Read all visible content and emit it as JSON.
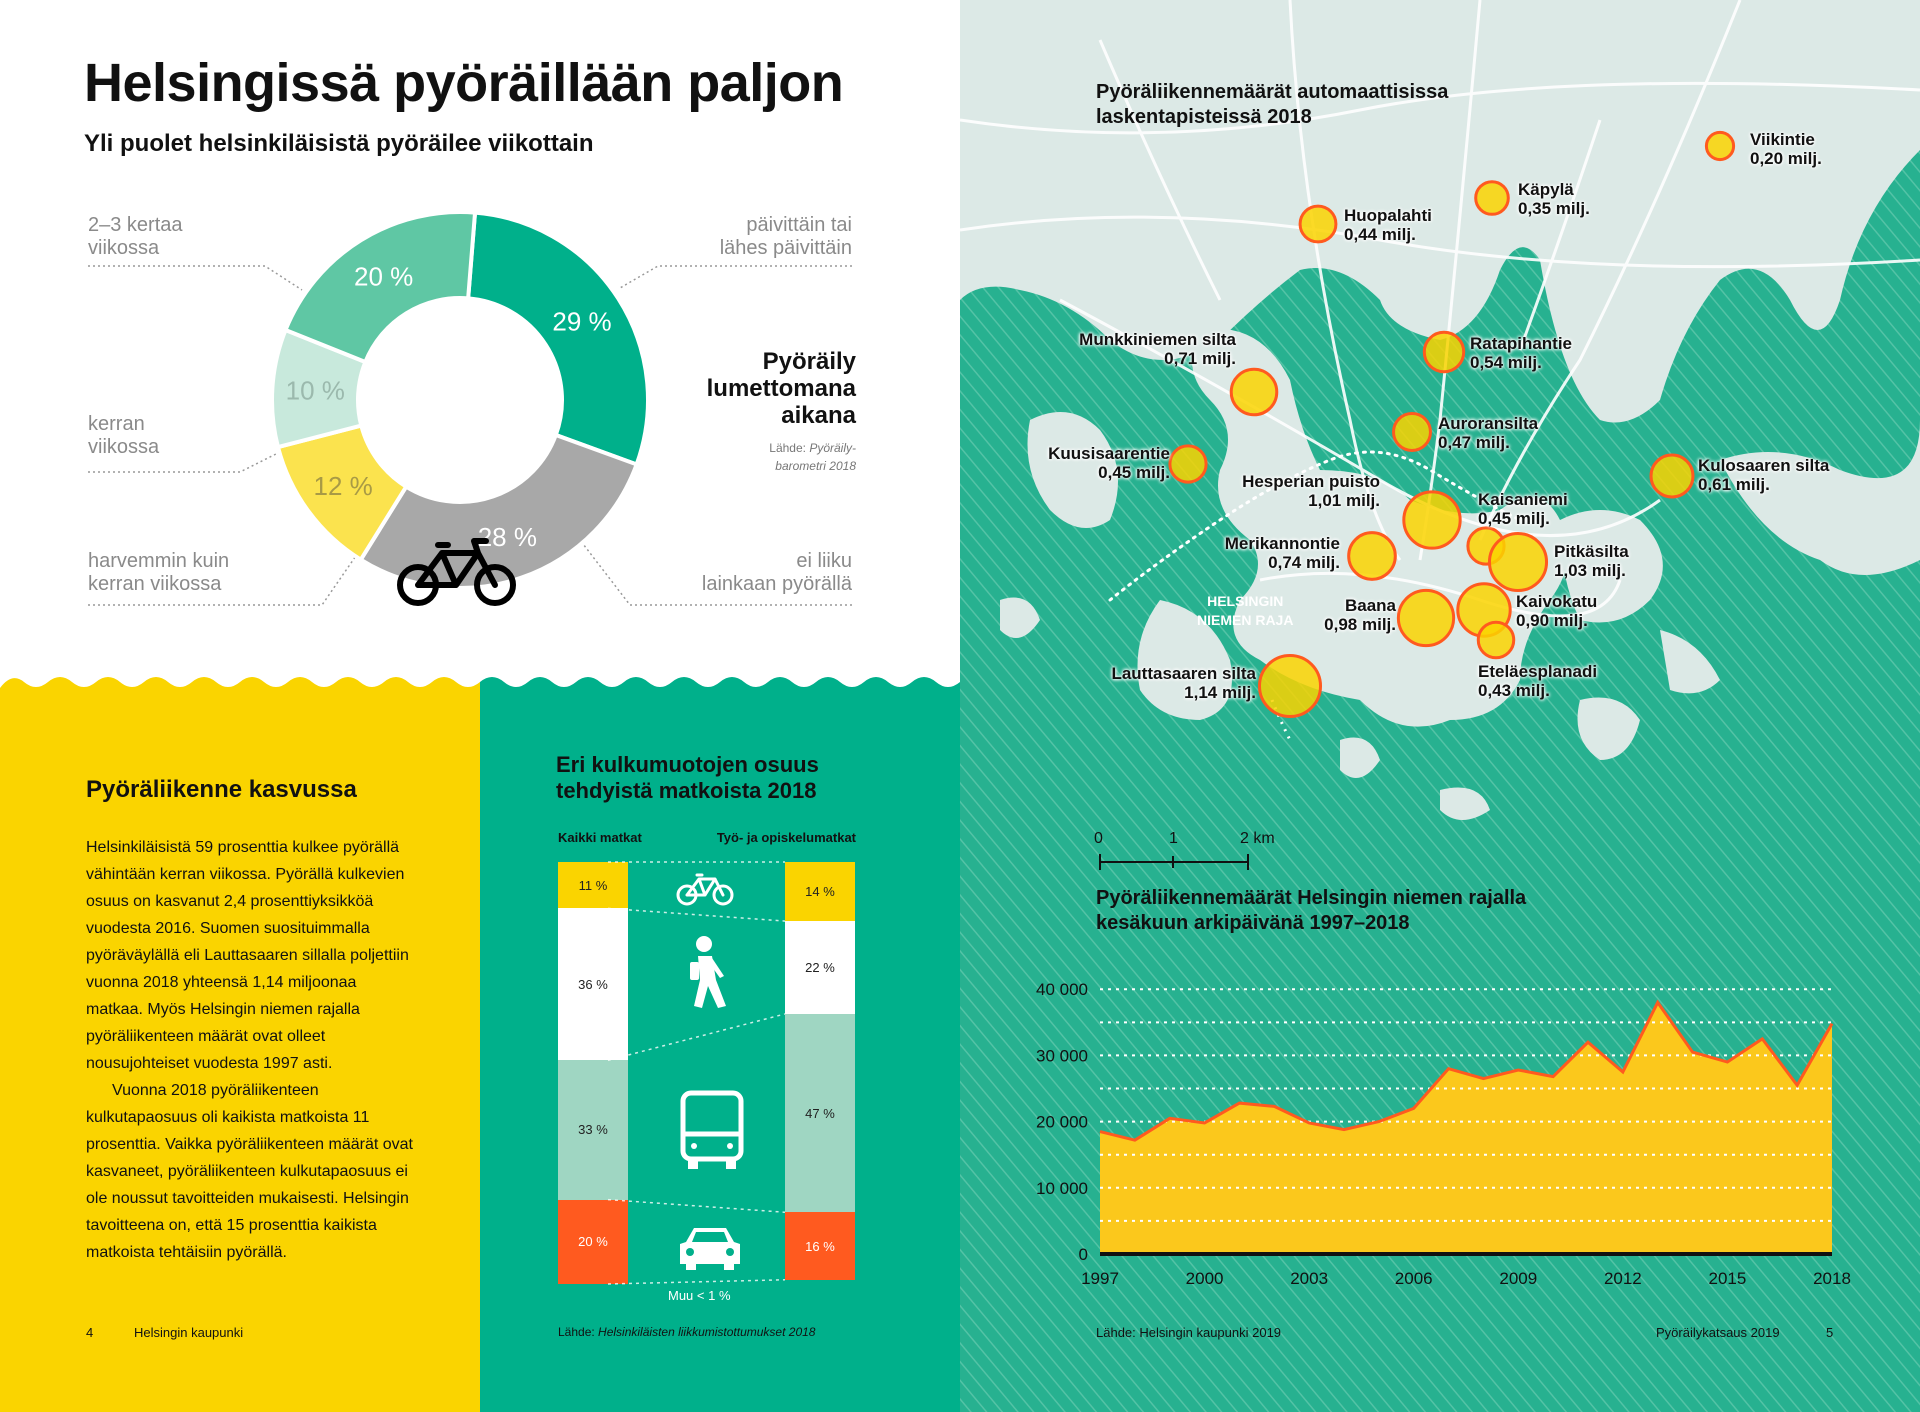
{
  "left": {
    "title": "Helsingissä pyöräillään paljon",
    "subtitle": "Yli puolet helsinkiläisistä pyöräilee viikottain",
    "donut_note": {
      "title_lines": [
        "Pyöräily",
        "lumettomana",
        "aikana"
      ],
      "source_prefix": "Lähde:",
      "source_italic_1": "Pyöräily-",
      "source_italic_2": "barometri 2018"
    },
    "growth": {
      "heading": "Pyöräliikenne kasvussa",
      "paragraph1": "Helsinkiläisistä 59 prosenttia kulkee pyörällä vähintään kerran viikossa. Pyörällä kulkevien osuus on kasvanut 2,4 prosenttiyksikköä vuodesta 2016. Suomen suosituimmalla pyöräväylällä eli Lauttasaaren sillalla poljettiin vuonna 2018 yhteensä 1,14 miljoonaa matkaa. Myös Helsingin niemen rajalla pyöräliikenteen määrät ovat olleet nousujohteiset vuodesta 1997 asti.",
      "paragraph2": "Vuonna 2018 pyöräliikenteen kulkutapaosuus oli kaikista matkoista 11 prosenttia. Vaikka pyöräliikenteen määrät ovat kasvaneet, pyöräliikenteen kulkutapaosuus ei ole noussut tavoitteiden mukaisesti. Helsingin tavoitteena on, että 15 prosenttia kaikista matkoista tehtäisiin pyörällä."
    },
    "modal": {
      "heading_line1": "Eri kulkumuotojen osuus",
      "heading_line2": "tehdyistä matkoista 2018",
      "col_all": "Kaikki matkat",
      "col_work": "Työ- ja opiskelumatkat",
      "other_note": "Muu < 1 %",
      "source_prefix": "Lähde:",
      "source_italic": "Helsinkiläisten liikkumistottumukset 2018"
    },
    "footer": {
      "page": "4",
      "org": "Helsingin kaupunki"
    }
  },
  "map": {
    "title_line1": "Pyöräliikennemäärät automaattisissa",
    "title_line2": "laskentapisteissä 2018",
    "boundary_line1": "HELSINGIN",
    "boundary_line2": "NIEMEN RAJA",
    "scale": {
      "labels": [
        "0",
        "1",
        "2 km"
      ]
    },
    "area_title_line1": "Pyöräliikennemäärät Helsingin niemen rajalla",
    "area_title_line2": "kesäkuun arkipäivänä 1997–2018",
    "source": "Lähde: Helsingin kaupunki 2019",
    "footer": {
      "publication": "Pyöräilykatsaus 2019",
      "page": "5"
    }
  },
  "chart_data": [
    {
      "type": "pie",
      "title": "Yli puolet helsinkiläisistä pyöräilee viikottain",
      "categories": [
        "päivittäin tai lähes päivittäin",
        "ei liiku lainkaan pyörällä",
        "harvemmin kuin kerran viikossa",
        "kerran viikossa",
        "2–3 kertaa viikossa"
      ],
      "values": [
        29,
        28,
        12,
        10,
        20
      ],
      "value_labels": [
        "29 %",
        "28 %",
        "12 %",
        "10 %",
        "20 %"
      ],
      "label_lines": [
        [
          "päivittäin tai",
          "lähes päivittäin"
        ],
        [
          "ei liiku",
          "lainkaan pyörällä"
        ],
        [
          "harvemmin kuin",
          "kerran viikossa"
        ],
        [
          "kerran",
          "viikossa"
        ],
        [
          "2–3 kertaa",
          "viikossa"
        ]
      ],
      "colors": [
        "#00b08b",
        "#a8a8a8",
        "#fbe34e",
        "#c8e9dc",
        "#5fc7a4"
      ],
      "donut": true
    },
    {
      "type": "bar",
      "stacked": true,
      "title": "Eri kulkumuotojen osuus tehdyistä matkoista 2018",
      "categories": [
        "Kaikki matkat",
        "Työ- ja opiskelumatkat"
      ],
      "series": [
        {
          "name": "pyörä",
          "icon": "bicycle-icon",
          "values": [
            11,
            14
          ],
          "labels": [
            "11 %",
            "14 %"
          ],
          "color": "#fad400"
        },
        {
          "name": "kävely",
          "icon": "walking-person-icon",
          "values": [
            36,
            22
          ],
          "labels": [
            "36 %",
            "22 %"
          ],
          "color": "#ffffff"
        },
        {
          "name": "joukkoliikenne",
          "icon": "bus-icon",
          "values": [
            33,
            47
          ],
          "labels": [
            "33 %",
            "47 %"
          ],
          "color": "#9fd6c2"
        },
        {
          "name": "auto",
          "icon": "car-icon",
          "values": [
            20,
            16
          ],
          "labels": [
            "20 %",
            "16 %"
          ],
          "color": "#ff5a1f"
        }
      ]
    },
    {
      "type": "scatter",
      "title": "Pyöräliikennemäärät automaattisissa laskentapisteissä 2018",
      "unit": "milj.",
      "points": [
        {
          "name": "Viikintie",
          "value": 0.2,
          "label": "0,20 milj."
        },
        {
          "name": "Käpylä",
          "value": 0.35,
          "label": "0,35 milj."
        },
        {
          "name": "Huopalahti",
          "value": 0.44,
          "label": "0,44 milj."
        },
        {
          "name": "Ratapihantie",
          "value": 0.54,
          "label": "0,54 milj."
        },
        {
          "name": "Munkkiniemen silta",
          "value": 0.71,
          "label": "0,71 milj."
        },
        {
          "name": "Auroransilta",
          "value": 0.47,
          "label": "0,47 milj."
        },
        {
          "name": "Kuusisaarentie",
          "value": 0.45,
          "label": "0,45 milj."
        },
        {
          "name": "Kulosaaren silta",
          "value": 0.61,
          "label": "0,61 milj."
        },
        {
          "name": "Hesperian puisto",
          "value": 1.01,
          "label": "1,01 milj."
        },
        {
          "name": "Kaisaniemi",
          "value": 0.45,
          "label": "0,45 milj."
        },
        {
          "name": "Merikannontie",
          "value": 0.74,
          "label": "0,74 milj."
        },
        {
          "name": "Pitkäsilta",
          "value": 1.03,
          "label": "1,03 milj."
        },
        {
          "name": "Baana",
          "value": 0.98,
          "label": "0,98 milj."
        },
        {
          "name": "Kaivokatu",
          "value": 0.9,
          "label": "0,90 milj."
        },
        {
          "name": "Eteläesplanadi",
          "value": 0.43,
          "label": "0,43 milj."
        },
        {
          "name": "Lauttasaaren silta",
          "value": 1.14,
          "label": "1,14 milj."
        }
      ]
    },
    {
      "type": "area",
      "title": "Pyöräliikennemäärät Helsingin niemen rajalla kesäkuun arkipäivänä 1997–2018",
      "x": [
        1997,
        1998,
        1999,
        2000,
        2001,
        2002,
        2003,
        2004,
        2005,
        2006,
        2007,
        2008,
        2009,
        2010,
        2011,
        2012,
        2013,
        2014,
        2015,
        2016,
        2017,
        2018
      ],
      "values": [
        18500,
        17200,
        20500,
        19800,
        22800,
        22300,
        19800,
        18800,
        20000,
        22000,
        28000,
        26500,
        27800,
        26800,
        32000,
        27500,
        38000,
        30500,
        29000,
        32500,
        25500,
        34800
      ],
      "xticks": [
        1997,
        2000,
        2003,
        2006,
        2009,
        2012,
        2015,
        2018
      ],
      "yticks": [
        0,
        10000,
        20000,
        30000,
        40000
      ],
      "ytick_labels": [
        "0",
        "10 000",
        "20 000",
        "30 000",
        "40 000"
      ],
      "ylim": [
        0,
        42000
      ],
      "color": "#fbc81c",
      "line_color": "#ff5a1f"
    }
  ],
  "colors": {
    "yellow": "#fad400",
    "teal": "#00b08b",
    "map_land": "#dce9e6",
    "map_water": "#27b190",
    "orange": "#ff5a1f"
  }
}
